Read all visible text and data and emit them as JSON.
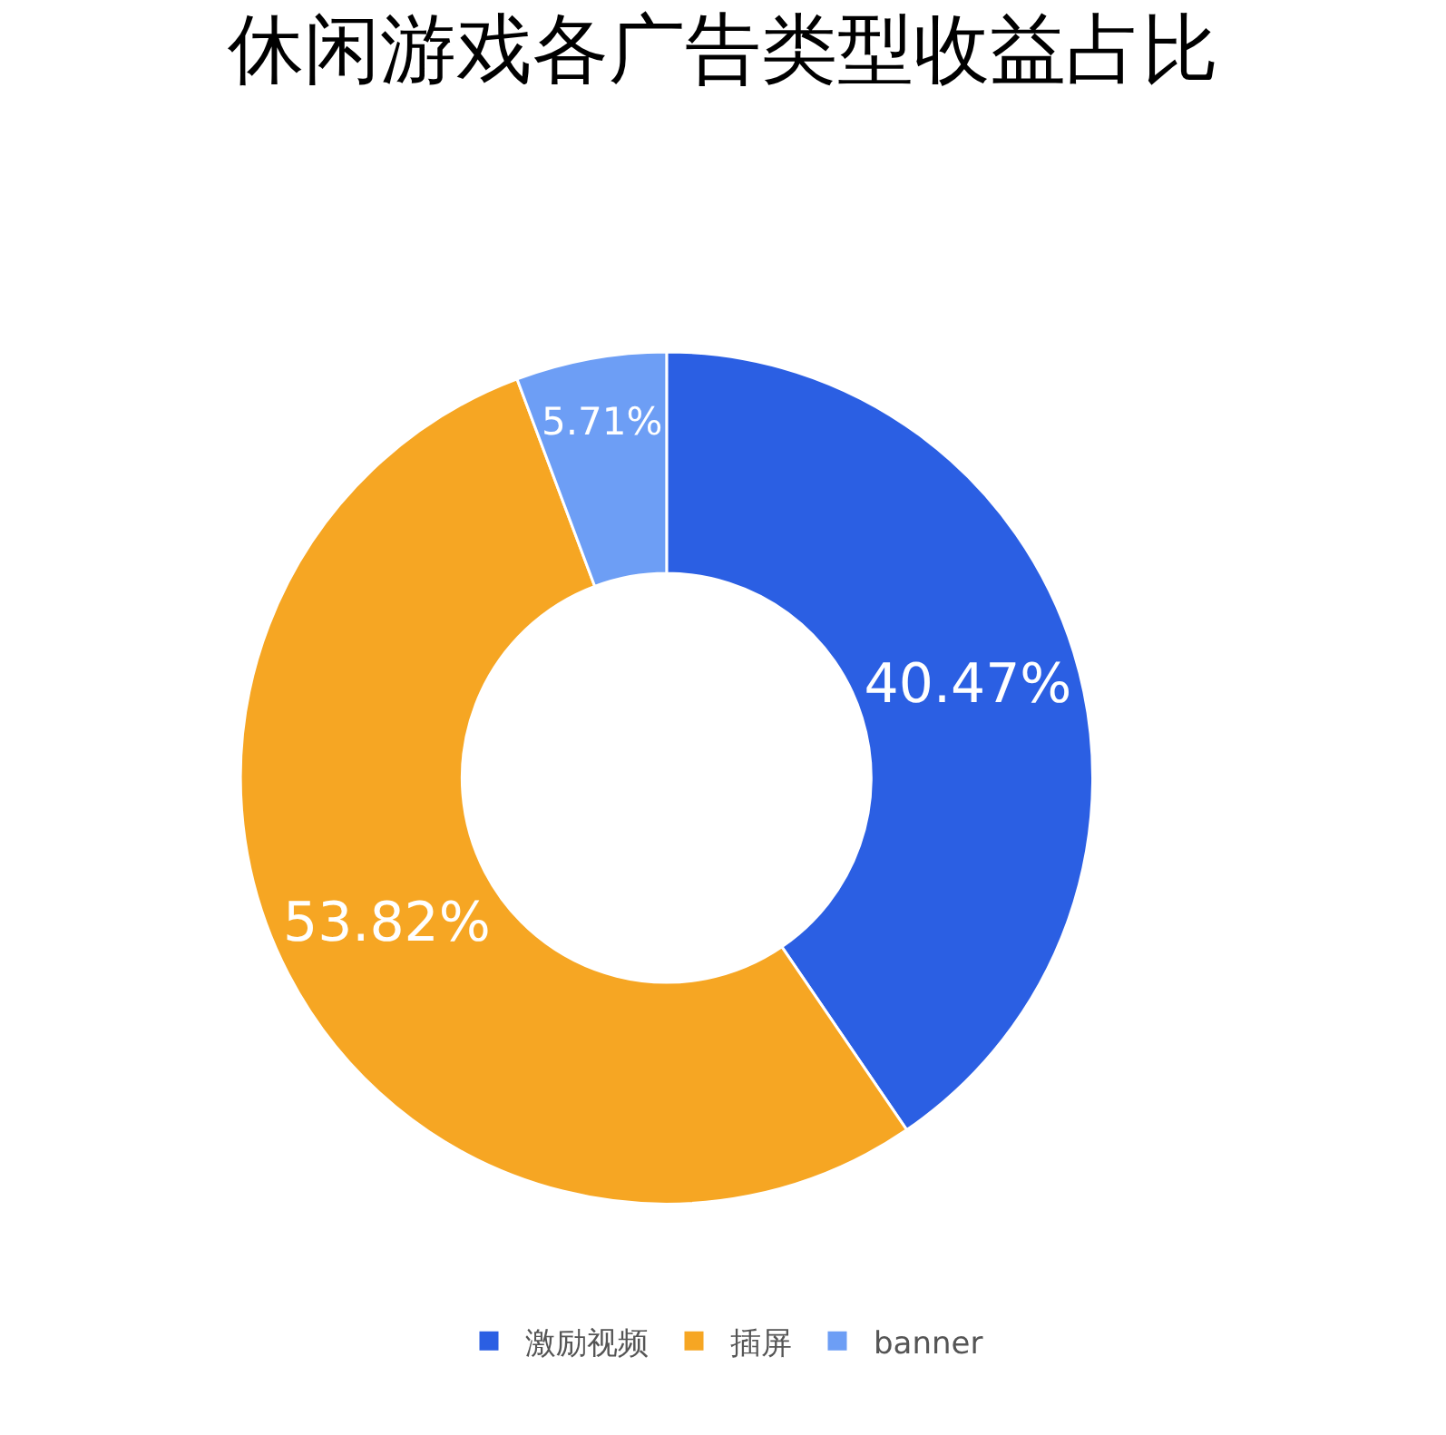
{
  "chart_data": {
    "type": "donut",
    "title": "休闲游戏各广告类型收益占比",
    "categories": [
      "激励视频",
      "插屏",
      "banner"
    ],
    "values": [
      40.47,
      53.82,
      5.71
    ],
    "colors": [
      "#2b5fe3",
      "#f6a623",
      "#6d9ef5"
    ],
    "value_labels": [
      "40.47%",
      "53.82%",
      "5.71%"
    ],
    "legend": "bottom"
  }
}
